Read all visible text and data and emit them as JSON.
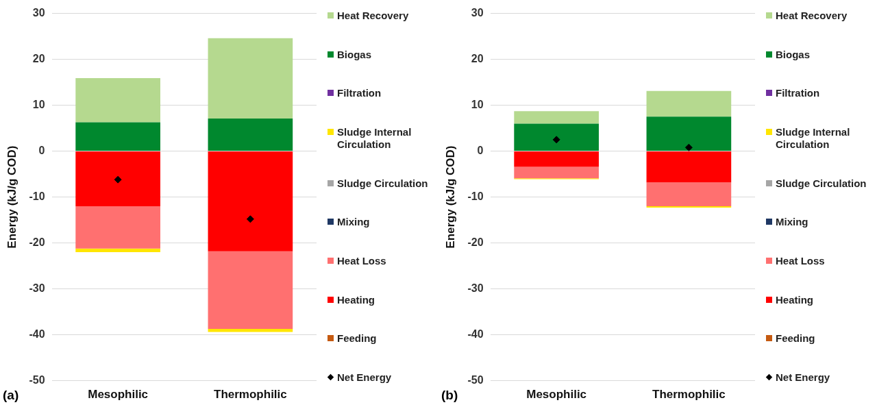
{
  "chart_data": [
    {
      "type": "bar",
      "ylabel": "Energy (kJ/g COD)",
      "categories": [
        "Mesophilic",
        "Thermophilic"
      ],
      "stacked": true,
      "ylim": [
        -50,
        30
      ],
      "yticks": [
        -50,
        -40,
        -30,
        -20,
        -10,
        0,
        10,
        20,
        30
      ],
      "grid": "y",
      "legend": "right",
      "marker": "diamond",
      "annotations": [
        "(a)"
      ],
      "series": [
        {
          "name": "Net Energy",
          "type": "scatter",
          "color": "#000000",
          "values": [
            -6.2,
            -14.8
          ]
        },
        {
          "name": "Feeding",
          "color": "#c55a11",
          "values": [
            null,
            null
          ]
        },
        {
          "name": "Heating",
          "color": "#ff0000",
          "values": [
            -12.0,
            -21.8
          ]
        },
        {
          "name": "Heat Loss",
          "color": "#ff7070",
          "values": [
            -9.2,
            -16.9
          ]
        },
        {
          "name": "Mixing",
          "color": "#1f3864",
          "values": [
            0,
            0
          ]
        },
        {
          "name": "Sludge Circulation",
          "color": "#a6a6a6",
          "values": [
            0,
            0
          ]
        },
        {
          "name": "Sludge Internal Circulation",
          "color": "#ffe600",
          "values": [
            -0.8,
            -0.7
          ]
        },
        {
          "name": "Filtration",
          "color": "#7030a0",
          "values": [
            0,
            0
          ]
        },
        {
          "name": "Biogas",
          "color": "#00882e",
          "values": [
            6.3,
            7.1
          ]
        },
        {
          "name": "Heat Recovery",
          "color": "#b5d98f",
          "values": [
            9.6,
            17.5
          ]
        }
      ]
    },
    {
      "type": "bar",
      "ylabel": "Energy (kJ/g COD)",
      "categories": [
        "Mesophilic",
        "Thermophilic"
      ],
      "stacked": true,
      "ylim": [
        -50,
        30
      ],
      "yticks": [
        -50,
        -40,
        -30,
        -20,
        -10,
        0,
        10,
        20,
        30
      ],
      "grid": "y",
      "legend": "right",
      "marker": "diamond",
      "annotations": [
        "(b)"
      ],
      "series": [
        {
          "name": "Net Energy",
          "type": "scatter",
          "color": "#000000",
          "values": [
            2.5,
            0.8
          ]
        },
        {
          "name": "Feeding",
          "color": "#c55a11",
          "values": [
            null,
            null
          ]
        },
        {
          "name": "Heating",
          "color": "#ff0000",
          "values": [
            -3.4,
            -6.8
          ]
        },
        {
          "name": "Heat Loss",
          "color": "#ff7070",
          "values": [
            -2.5,
            -5.2
          ]
        },
        {
          "name": "Mixing",
          "color": "#1f3864",
          "values": [
            0,
            0
          ]
        },
        {
          "name": "Sludge Circulation",
          "color": "#a6a6a6",
          "values": [
            0,
            0
          ]
        },
        {
          "name": "Sludge Internal Circulation",
          "color": "#ffe600",
          "values": [
            -0.2,
            -0.3
          ]
        },
        {
          "name": "Filtration",
          "color": "#7030a0",
          "values": [
            0,
            0
          ]
        },
        {
          "name": "Biogas",
          "color": "#00882e",
          "values": [
            6.0,
            7.5
          ]
        },
        {
          "name": "Heat Recovery",
          "color": "#b5d98f",
          "values": [
            2.7,
            5.6
          ]
        }
      ]
    }
  ]
}
